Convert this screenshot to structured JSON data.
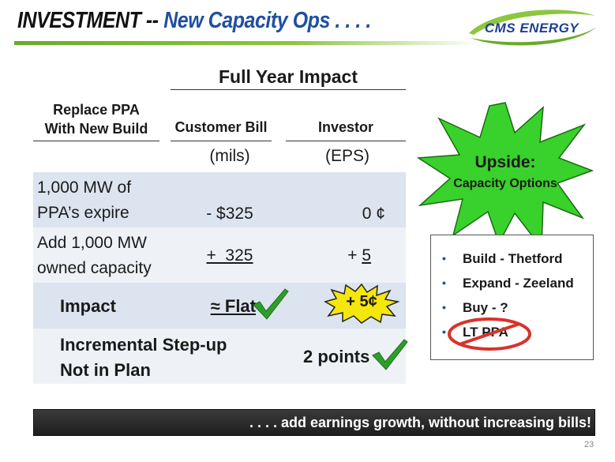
{
  "header": {
    "title_part1": "INVESTMENT --",
    "title_part2": " New Capacity Ops . . . .",
    "logo_text": "CMS ENERGY"
  },
  "table": {
    "group_header": "Full Year Impact",
    "row_header_line1": "Replace PPA",
    "row_header_line2": "With New Build",
    "col1_header": "Customer Bill",
    "col2_header": "Investor",
    "col1_units": "(mils)",
    "col2_units": "(EPS)",
    "rows": [
      {
        "label_line1": "1,000 MW of",
        "label_line2": "PPA’s expire",
        "bill": "- $325",
        "eps": "0 ¢"
      },
      {
        "label_line1": "Add 1,000 MW",
        "label_line2": "owned capacity",
        "bill": "+  325",
        "eps_sign": "+ ",
        "eps_value": "5"
      },
      {
        "label": "Impact",
        "bill": "≈ Flat",
        "eps": "+ 5¢"
      },
      {
        "label_line1": "Incremental Step-up",
        "label_line2": "Not in Plan",
        "value": "2 points"
      }
    ]
  },
  "upside": {
    "title": "Upside:",
    "subtitle": "Capacity Options",
    "items": [
      "Build - Thetford",
      "Expand - Zeeland",
      "Buy - ?",
      "LT PPA"
    ]
  },
  "footer": {
    "tagline": ". . . . add earnings growth, without increasing bills!",
    "page_number": "23"
  },
  "colors": {
    "title_blue": "#1f4fa0",
    "accent_green": "#8cc63f",
    "starburst_green": "#39d12b",
    "eps_burst_yellow": "#f5e60c",
    "checkmark_green": "#2e9e2a",
    "no_symbol_red": "#d9322b",
    "row_band_dark": "#dce4ef",
    "row_band_light": "#eef2f7"
  },
  "icons": [
    "checkmark-icon",
    "starburst-icon",
    "no-symbol-icon",
    "bullet-icon"
  ]
}
